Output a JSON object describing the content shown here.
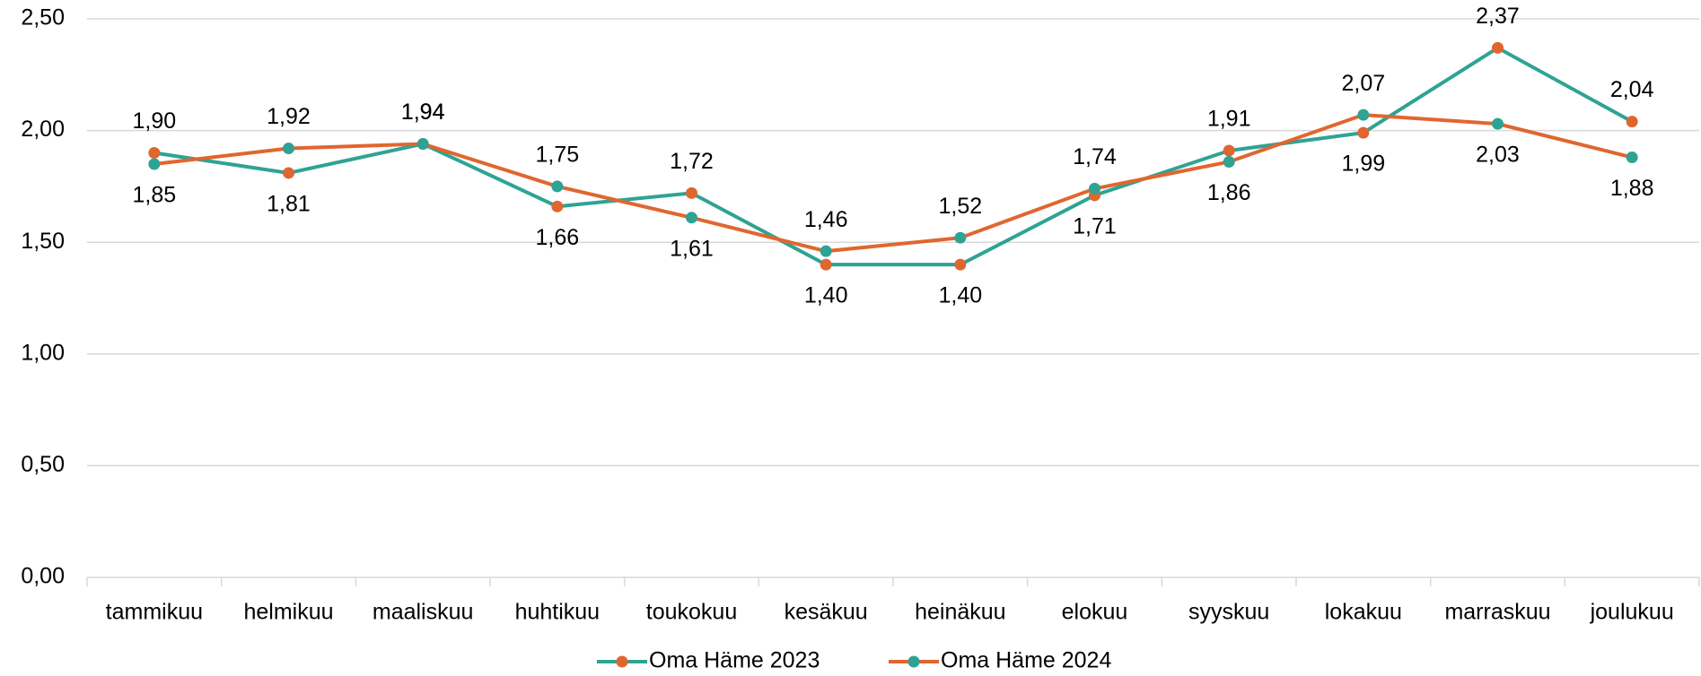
{
  "chart_data": {
    "type": "line",
    "categories": [
      "tammikuu",
      "helmikuu",
      "maaliskuu",
      "huhtikuu",
      "toukokuu",
      "kesäkuu",
      "heinäkuu",
      "elokuu",
      "syyskuu",
      "lokakuu",
      "marraskuu",
      "joulukuu"
    ],
    "series": [
      {
        "name": "Oma Häme 2023",
        "color": "#2ea394",
        "marker_color": "#e0662f",
        "values": [
          1.9,
          1.81,
          1.94,
          1.66,
          1.72,
          1.4,
          1.4,
          1.71,
          1.91,
          1.99,
          2.37,
          2.04
        ],
        "value_labels": [
          "1,90",
          "1,81",
          "1,94",
          "1,66",
          "1,72",
          "1,40",
          "1,40",
          "1,71",
          "1,91",
          "1,99",
          "2,37",
          "2,04"
        ]
      },
      {
        "name": "Oma Häme 2024",
        "color": "#e0662f",
        "marker_color": "#2ea394",
        "values": [
          1.85,
          1.92,
          1.94,
          1.75,
          1.61,
          1.46,
          1.52,
          1.74,
          1.86,
          2.07,
          2.03,
          1.88
        ],
        "value_labels": [
          "1,85",
          "1,92",
          "1,94",
          "1,75",
          "1,61",
          "1,46",
          "1,52",
          "1,74",
          "1,86",
          "2,07",
          "2,03",
          "1,88"
        ]
      }
    ],
    "ylim": [
      0,
      2.5
    ],
    "yticks": [
      {
        "value": 0,
        "label": "0,00"
      },
      {
        "value": 0.5,
        "label": "0,50"
      },
      {
        "value": 1,
        "label": "1,00"
      },
      {
        "value": 1.5,
        "label": "1,50"
      },
      {
        "value": 2,
        "label": "2,00"
      },
      {
        "value": 2.5,
        "label": "2,50"
      }
    ],
    "grid": true,
    "legend": "bottom"
  }
}
